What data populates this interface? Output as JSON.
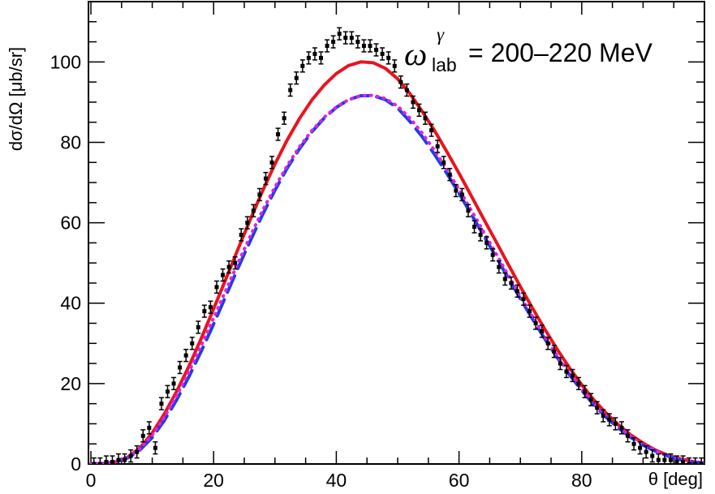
{
  "chart_data": {
    "type": "scatter",
    "title": "",
    "xlabel": "θ [deg]",
    "ylabel": "dσ/dΩ [μb/sr]",
    "xlim": [
      0,
      100
    ],
    "ylim": [
      0,
      115
    ],
    "x_ticks": [
      0,
      20,
      40,
      60,
      80
    ],
    "y_ticks": [
      0,
      20,
      40,
      60,
      80,
      100
    ],
    "grid": false,
    "annotation": {
      "symbol": "ω",
      "superscript": "γ",
      "subscript": "lab",
      "value": "= 200–220 MeV"
    },
    "series": [
      {
        "name": "data",
        "kind": "points",
        "color": "#000000",
        "x": [
          0.5,
          1.5,
          2.5,
          3.5,
          4.5,
          5.5,
          6.5,
          7.5,
          8.5,
          9.5,
          10.5,
          11.5,
          12.5,
          13.5,
          14.5,
          15.5,
          16.5,
          17.5,
          18.5,
          19.5,
          20.5,
          21.5,
          22.5,
          23.5,
          24.5,
          25.5,
          26.5,
          27.5,
          28.5,
          29.5,
          30.5,
          31.5,
          32.5,
          33.5,
          34.5,
          35.5,
          36.5,
          37.5,
          38.5,
          39.5,
          40.5,
          41.5,
          42.5,
          43.5,
          44.5,
          45.5,
          46.5,
          47.5,
          48.5,
          49.5,
          50.5,
          51.5,
          52.5,
          53.5,
          54.5,
          55.5,
          56.5,
          57.5,
          58.5,
          59.5,
          60.5,
          61.5,
          62.5,
          63.5,
          64.5,
          65.5,
          66.5,
          67.5,
          68.5,
          69.5,
          70.5,
          71.5,
          72.5,
          73.5,
          74.5,
          75.5,
          76.5,
          77.5,
          78.5,
          79.5,
          80.5,
          81.5,
          82.5,
          83.5,
          84.5,
          85.5,
          86.5,
          87.5,
          88.5,
          89.5,
          90.5,
          91.5,
          92.5,
          93.5,
          94.5,
          95.5,
          96.5,
          97.5,
          98.5,
          99.5
        ],
        "y": [
          0,
          0,
          0.5,
          0.5,
          1,
          1,
          2,
          3,
          7,
          9,
          4,
          15,
          18,
          20,
          24,
          27,
          30,
          34,
          38,
          39,
          44,
          47,
          49,
          50,
          57,
          60,
          63,
          67,
          71,
          75,
          82,
          86,
          93,
          96,
          99,
          101,
          102,
          101,
          104,
          105,
          107,
          106,
          106,
          105,
          104,
          104,
          103,
          102,
          101,
          99,
          95,
          93,
          90,
          88,
          86,
          83,
          79,
          75,
          72,
          68,
          67,
          63,
          59,
          57,
          55,
          52,
          49,
          46,
          45,
          43,
          41,
          38,
          35,
          33,
          30,
          28,
          25,
          23,
          22,
          20,
          18,
          16,
          14,
          12,
          11,
          10,
          9,
          7,
          5,
          4,
          3,
          2,
          1,
          1,
          1,
          0.5,
          0.5,
          0,
          0,
          0
        ],
        "yerr": 1.5
      },
      {
        "name": "red-solid",
        "kind": "line",
        "style": "solid",
        "color": "#e8141e",
        "x": [
          0,
          2,
          4,
          6,
          8,
          10,
          12,
          14,
          16,
          18,
          20,
          22,
          24,
          26,
          28,
          30,
          32,
          34,
          36,
          38,
          40,
          42,
          44,
          46,
          48,
          50,
          52,
          54,
          56,
          58,
          60,
          62,
          64,
          66,
          68,
          70,
          72,
          74,
          76,
          78,
          80,
          82,
          84,
          86,
          88,
          90,
          92,
          94,
          96,
          98,
          100
        ],
        "y": [
          0,
          0.1,
          0.5,
          1.7,
          4.0,
          7.7,
          12.5,
          18.1,
          24.4,
          31.3,
          38.6,
          46.0,
          53.5,
          60.9,
          68.0,
          74.6,
          80.6,
          85.9,
          90.5,
          94.2,
          97.1,
          99.1,
          100.0,
          99.8,
          98.4,
          95.8,
          92.1,
          87.7,
          82.9,
          77.7,
          72.3,
          66.7,
          61.0,
          55.4,
          49.7,
          44.1,
          38.7,
          33.5,
          28.5,
          23.9,
          19.7,
          15.9,
          12.6,
          9.7,
          7.2,
          5.2,
          3.5,
          2.2,
          1.3,
          0.6,
          0.2
        ]
      },
      {
        "name": "blue-dashed",
        "kind": "line",
        "style": "dashed",
        "color": "#1a3ee8",
        "x": [
          0,
          2,
          4,
          6,
          8,
          10,
          12,
          14,
          16,
          18,
          20,
          22,
          24,
          26,
          28,
          30,
          32,
          34,
          36,
          38,
          40,
          42,
          44,
          46,
          48,
          50,
          52,
          54,
          56,
          58,
          60,
          62,
          64,
          66,
          68,
          70,
          72,
          74,
          76,
          78,
          80,
          82,
          84,
          86,
          88,
          90,
          92,
          94,
          96,
          98,
          100
        ],
        "y": [
          0,
          0.1,
          0.5,
          1.5,
          3.5,
          6.6,
          10.9,
          16.0,
          21.8,
          28.1,
          34.8,
          41.8,
          48.8,
          55.6,
          62.1,
          68.1,
          73.6,
          78.4,
          82.6,
          86.0,
          88.7,
          90.6,
          91.6,
          91.6,
          90.6,
          88.5,
          85.2,
          81.4,
          77.0,
          72.3,
          67.3,
          62.1,
          56.9,
          51.6,
          46.3,
          41.1,
          36.0,
          31.1,
          26.5,
          22.2,
          18.3,
          14.7,
          11.6,
          8.9,
          6.6,
          4.7,
          3.2,
          2.0,
          1.1,
          0.5,
          0.2
        ]
      },
      {
        "name": "magenta-dotted",
        "kind": "line",
        "style": "dotted",
        "color": "#e020e8",
        "x": [
          0,
          2,
          4,
          6,
          8,
          10,
          12,
          14,
          16,
          18,
          20,
          22,
          24,
          26,
          28,
          30,
          32,
          34,
          36,
          38,
          40,
          42,
          44,
          46,
          48,
          50,
          52,
          54,
          56,
          58,
          60,
          62,
          64,
          66,
          68,
          70,
          72,
          74,
          76,
          78,
          80,
          82,
          84,
          86,
          88,
          90,
          92,
          94,
          96,
          98,
          100
        ],
        "y": [
          0,
          0.1,
          0.5,
          1.6,
          3.8,
          7.2,
          11.7,
          17.0,
          23.0,
          29.5,
          36.3,
          43.2,
          50.1,
          56.8,
          63.1,
          68.9,
          74.2,
          78.9,
          82.9,
          86.2,
          88.8,
          90.6,
          91.6,
          91.7,
          90.9,
          89.0,
          86.0,
          82.3,
          78.0,
          73.3,
          68.3,
          63.1,
          57.8,
          52.4,
          47.0,
          41.7,
          36.6,
          31.6,
          26.9,
          22.6,
          18.6,
          15.0,
          11.9,
          9.2,
          6.9,
          4.9,
          3.4,
          2.2,
          1.3,
          0.6,
          0.2
        ]
      }
    ]
  }
}
